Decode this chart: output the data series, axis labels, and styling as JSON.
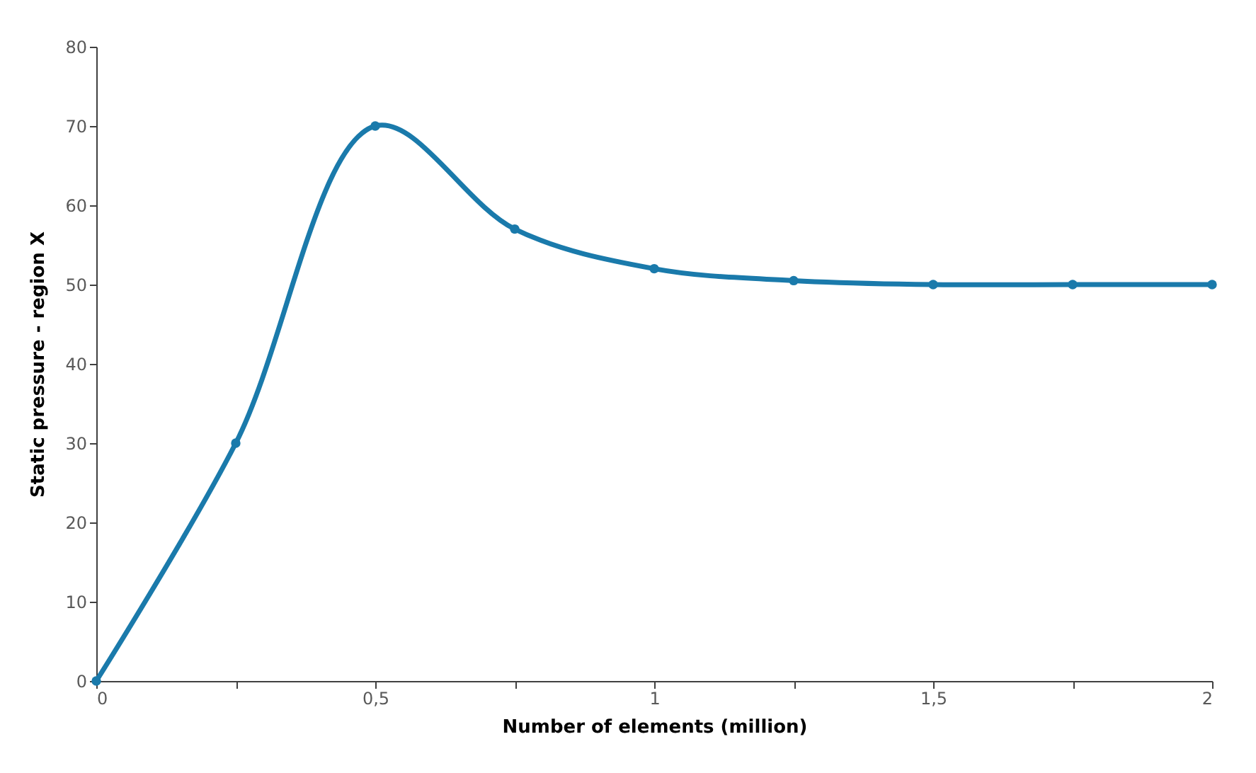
{
  "chart_data": {
    "type": "line",
    "xlabel": "Number of elements (million)",
    "ylabel": "Static pressure - region X",
    "x": [
      0,
      0.25,
      0.5,
      0.75,
      1,
      1.25,
      1.5,
      1.75,
      2
    ],
    "series": [
      {
        "color": "#1a7aab",
        "values": [
          0,
          30,
          70,
          57,
          52,
          50.5,
          50,
          50,
          50
        ]
      }
    ],
    "xlim": [
      0,
      2
    ],
    "ylim": [
      0,
      80
    ],
    "xticks": [
      0,
      {
        "value": 0.25,
        "label": null
      },
      {
        "value": 0.5,
        "label": "0,5"
      },
      {
        "value": 0.75,
        "label": null
      },
      1,
      {
        "value": 1.25,
        "label": null
      },
      {
        "value": 1.5,
        "label": "1,5"
      },
      {
        "value": 1.75,
        "label": null
      },
      2
    ],
    "yticks": [
      0,
      10,
      20,
      30,
      40,
      50,
      60,
      70,
      80
    ],
    "grid": false,
    "marker": "circle",
    "line_style": "solid"
  }
}
